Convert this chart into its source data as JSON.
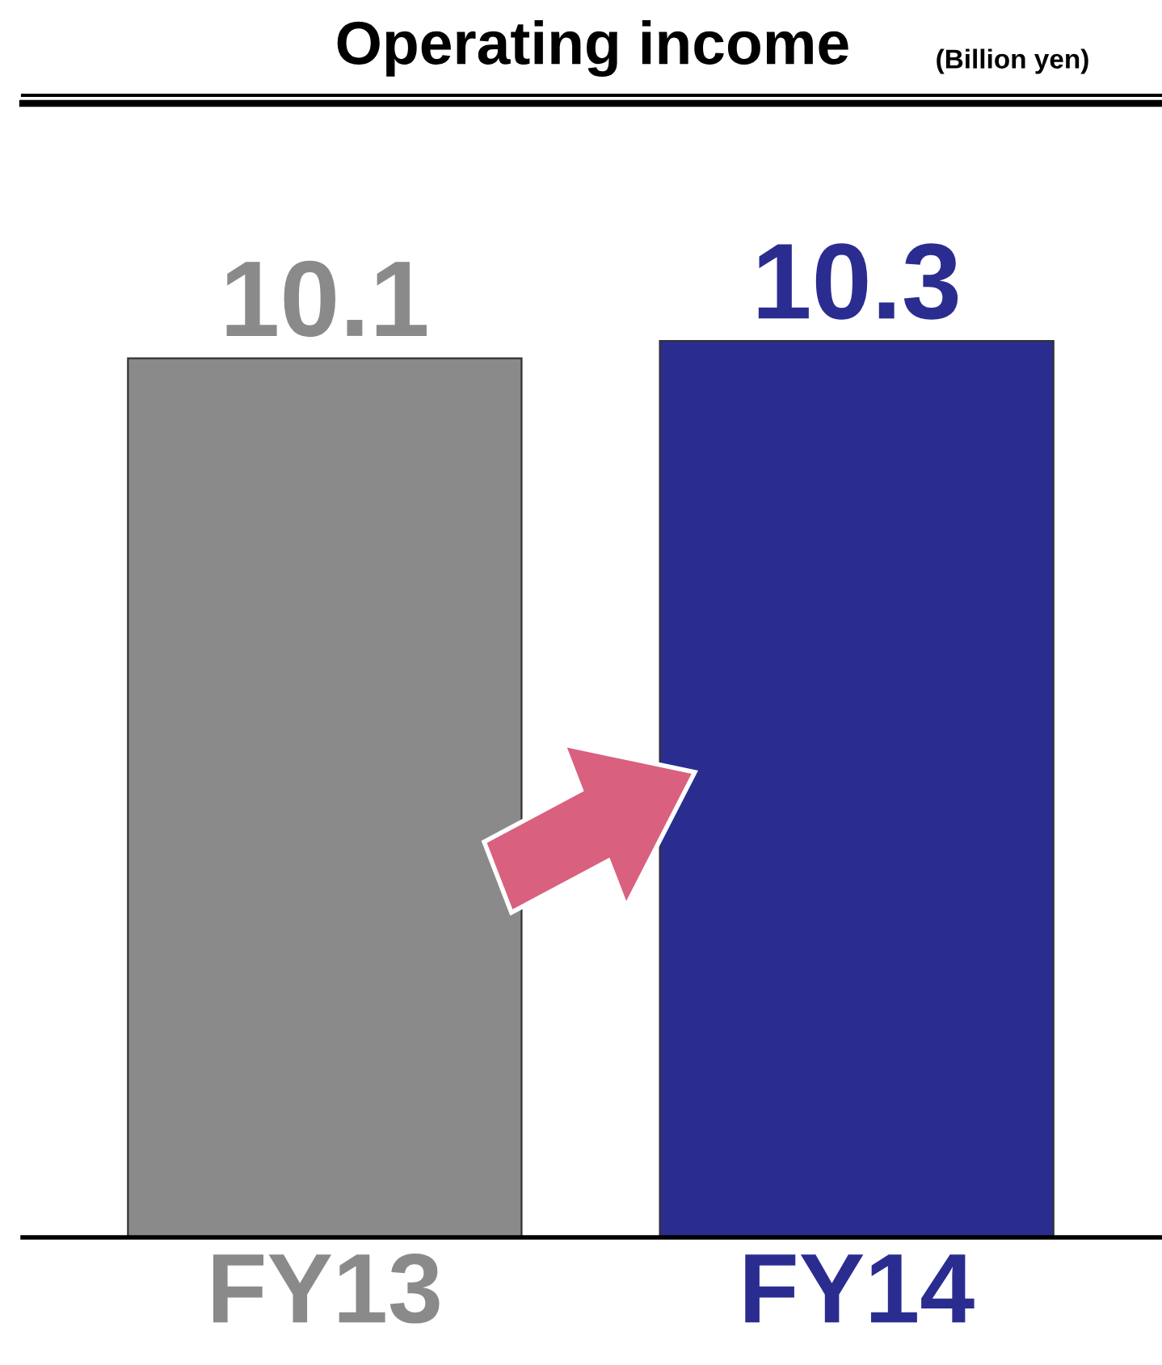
{
  "chart_data": {
    "type": "bar",
    "title": "Operating income",
    "subtitle": "(Billion yen)",
    "categories": [
      "FY13",
      "FY14"
    ],
    "values": [
      10.1,
      10.3
    ],
    "colors": [
      "#8a8a8a",
      "#2a2d8f"
    ],
    "data_labels": true,
    "tick_labels": "x",
    "grid": false,
    "legend": false
  }
}
